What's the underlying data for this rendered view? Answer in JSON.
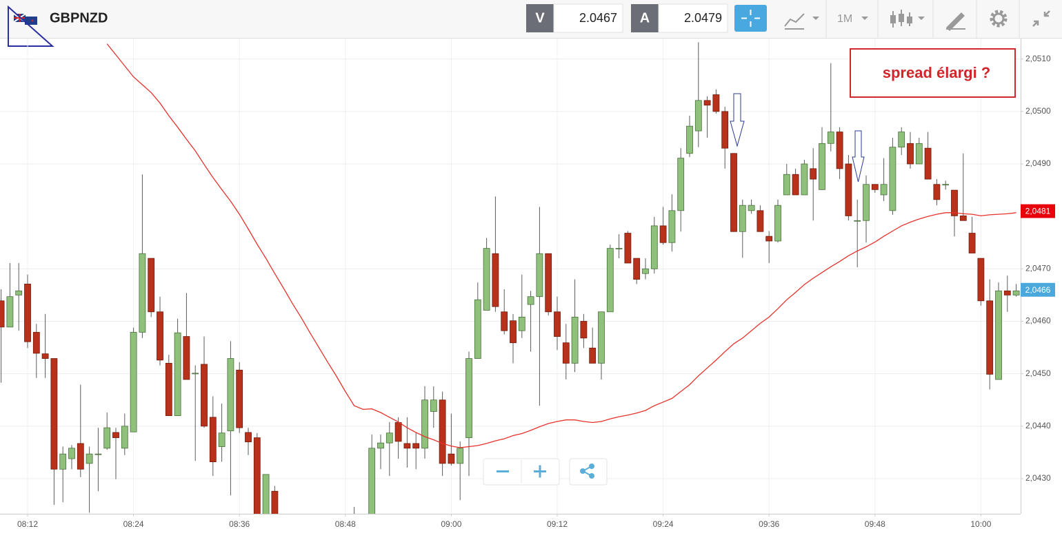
{
  "header": {
    "symbol": "GBPNZD",
    "bid_label": "V",
    "bid": "2.0467",
    "ask_label": "A",
    "ask": "2.0479",
    "timeframe": "1M"
  },
  "chart_data": {
    "type": "candlestick",
    "annotation": "spread élargi ?",
    "categories": [
      null,
      null,
      null,
      "08:12",
      null,
      null,
      null,
      null,
      null,
      null,
      null,
      null,
      null,
      null,
      null,
      "08:24",
      null,
      null,
      null,
      null,
      null,
      null,
      null,
      null,
      null,
      null,
      null,
      "08:36",
      null,
      null,
      null,
      null,
      null,
      null,
      null,
      null,
      null,
      null,
      null,
      "08:48",
      null,
      null,
      null,
      null,
      null,
      null,
      null,
      null,
      null,
      null,
      null,
      "09:00",
      null,
      null,
      null,
      null,
      null,
      null,
      null,
      null,
      null,
      null,
      null,
      "09:12",
      null,
      null,
      null,
      null,
      null,
      null,
      null,
      null,
      null,
      null,
      null,
      "09:24",
      null,
      null,
      null,
      null,
      null,
      null,
      null,
      null,
      null,
      null,
      null,
      "09:36",
      null,
      null,
      null,
      null,
      null,
      null,
      null,
      null,
      null,
      null,
      null,
      "09:48",
      null,
      null,
      null,
      null,
      null,
      null,
      null,
      null,
      null,
      null,
      null,
      "10:00",
      null,
      null,
      null,
      null
    ],
    "open": [
      2.04639,
      2.04589,
      2.0465,
      2.04671,
      2.04579,
      2.04538,
      2.04529,
      2.04318,
      2.04338,
      2.04367,
      2.04329,
      2.04347,
      2.04358,
      2.04388,
      2.04358,
      2.04389,
      2.04579,
      2.0472,
      2.04618,
      2.0452,
      2.0442,
      2.04571,
      2.04501,
      2.04518,
      2.04417,
      2.04361,
      2.04391,
      2.04507,
      2.04388,
      2.04378,
      2.04215,
      2.04276,
      null,
      null,
      null,
      null,
      null,
      null,
      null,
      null,
      2.042,
      null,
      2.04225,
      2.04358,
      2.04368,
      2.04407,
      2.04367,
      2.04367,
      2.04358,
      2.04428,
      2.0445,
      2.04347,
      2.04329,
      2.04378,
      2.04529,
      2.04621,
      2.04729,
      2.04618,
      2.04601,
      2.04582,
      2.04632,
      2.04647,
      2.04729,
      2.04618,
      2.04559,
      2.0452,
      2.046,
      2.04549,
      2.0452,
      2.04618,
      2.04739,
      2.04768,
      2.0472,
      2.04691,
      2.047,
      2.04782,
      2.0475,
      2.04811,
      2.0492,
      2.04963,
      2.05021,
      2.05032,
      2.05,
      2.0492,
      2.04771,
      2.04811,
      2.04811,
      2.04762,
      2.04753,
      2.04841,
      2.0488,
      2.04841,
      2.04891,
      2.04851,
      2.04939,
      2.04961,
      2.049,
      2.04792,
      2.04792,
      2.04861,
      2.04841,
      2.04811,
      2.04932,
      2.04939,
      2.049,
      2.0493,
      2.04861,
      2.04861,
      2.0485,
      2.04801,
      2.04768,
      2.0472,
      2.04639,
      2.04489,
      2.04658,
      2.0465
    ],
    "high": [
      2.04661,
      2.04711,
      2.04711,
      2.04689,
      2.04595,
      2.04614,
      2.04529,
      2.04361,
      2.04364,
      2.04479,
      2.04361,
      2.04397,
      2.04426,
      2.04397,
      2.04424,
      2.04588,
      2.0488,
      2.0472,
      2.04647,
      2.04536,
      2.04605,
      2.04654,
      2.04516,
      2.04571,
      2.04457,
      2.04443,
      2.04562,
      2.04522,
      2.04397,
      2.04387,
      2.04308,
      2.04286,
      null,
      null,
      null,
      null,
      null,
      null,
      null,
      null,
      2.04246,
      null,
      2.04384,
      2.04384,
      2.04408,
      2.04417,
      2.04417,
      2.04387,
      2.04476,
      2.04476,
      2.04466,
      2.04424,
      2.04371,
      2.04542,
      2.04674,
      2.04759,
      2.04838,
      2.04661,
      2.04614,
      2.04689,
      2.04658,
      2.04818,
      2.04729,
      2.04647,
      2.04595,
      2.0468,
      2.04614,
      2.04588,
      2.04618,
      2.04746,
      2.04766,
      2.04772,
      2.0472,
      2.0472,
      2.04799,
      2.04818,
      2.04842,
      2.0493,
      2.04992,
      2.05132,
      2.05029,
      2.05042,
      2.05009,
      2.0492,
      2.04832,
      2.04832,
      2.04821,
      2.04772,
      2.04832,
      2.049,
      2.04891,
      2.04908,
      2.0493,
      2.0497,
      2.05092,
      2.0497,
      2.04917,
      2.04832,
      2.04878,
      2.04861,
      2.04911,
      2.0495,
      2.0497,
      2.04961,
      2.0495,
      2.04961,
      2.04871,
      2.04868,
      2.0485,
      2.0492,
      2.04799,
      2.0472,
      2.0468,
      2.04674,
      2.04687,
      2.04671
    ],
    "low": [
      2.04483,
      2.04589,
      2.04582,
      2.04549,
      2.04492,
      2.04492,
      2.0425,
      2.04255,
      2.04318,
      2.04303,
      2.04235,
      2.04276,
      2.04355,
      2.04299,
      2.04345,
      2.04389,
      2.04568,
      2.04608,
      2.04516,
      2.0442,
      2.0442,
      2.04489,
      2.04334,
      2.04397,
      2.04305,
      2.04332,
      2.04268,
      2.04387,
      2.04345,
      2.0421,
      2.04205,
      2.04215,
      null,
      null,
      null,
      null,
      null,
      null,
      null,
      null,
      2.0419,
      null,
      2.04215,
      2.04318,
      2.04305,
      2.04338,
      2.04321,
      2.04318,
      2.04338,
      2.04397,
      2.04305,
      2.04325,
      2.04259,
      2.04305,
      2.04529,
      2.04621,
      2.04618,
      2.04575,
      2.0452,
      2.04568,
      2.04542,
      2.04439,
      2.04611,
      2.04545,
      2.04489,
      2.04503,
      2.04549,
      2.0452,
      2.04489,
      2.04618,
      2.0472,
      2.04711,
      2.04671,
      2.0468,
      2.04691,
      2.04746,
      2.04733,
      2.04771,
      2.04913,
      2.04932,
      2.0495,
      2.04996,
      2.04891,
      2.04771,
      2.04721,
      2.04805,
      2.04771,
      2.04711,
      2.0475,
      2.04841,
      2.04841,
      2.04841,
      2.04792,
      2.04851,
      2.04924,
      2.04871,
      2.04792,
      2.04703,
      2.0475,
      2.04845,
      2.04829,
      2.04803,
      2.04917,
      2.04891,
      2.049,
      2.04871,
      2.04821,
      2.04851,
      2.04762,
      2.04792,
      2.0473,
      2.0463,
      2.0447,
      2.04489,
      2.04618,
      2.04647
    ],
    "close": [
      2.04589,
      2.04647,
      2.04658,
      2.04561,
      2.04539,
      2.04529,
      2.04318,
      2.04347,
      2.04358,
      2.04318,
      2.04347,
      2.04347,
      2.04397,
      2.04378,
      2.044,
      2.04579,
      2.04729,
      2.04618,
      2.04526,
      2.0442,
      2.04578,
      2.04489,
      2.04501,
      2.044,
      2.04332,
      2.04387,
      2.04529,
      2.04397,
      2.0437,
      2.0422,
      2.04308,
      2.04225,
      null,
      null,
      null,
      null,
      null,
      null,
      null,
      null,
      2.04215,
      null,
      2.04358,
      2.04368,
      2.04387,
      2.04371,
      2.04358,
      2.04358,
      2.0445,
      2.0445,
      2.04329,
      2.04329,
      2.04358,
      2.04529,
      2.04641,
      2.04739,
      2.04628,
      2.04582,
      2.04559,
      2.04608,
      2.04647,
      2.04729,
      2.04618,
      2.04571,
      2.0452,
      2.04608,
      2.04568,
      2.0452,
      2.04618,
      2.04739,
      2.04739,
      2.04711,
      2.0468,
      2.047,
      2.04782,
      2.0475,
      2.04811,
      2.04911,
      2.04972,
      2.05021,
      2.05012,
      2.05,
      2.0493,
      2.04771,
      2.04821,
      2.04821,
      2.04771,
      2.04753,
      2.04821,
      2.0488,
      2.04841,
      2.049,
      2.04871,
      2.04939,
      2.04961,
      2.04891,
      2.04801,
      2.04792,
      2.04861,
      2.04851,
      2.04861,
      2.04932,
      2.04961,
      2.049,
      2.04939,
      2.04871,
      2.04832,
      2.04861,
      2.04801,
      2.04792,
      2.0473,
      2.04639,
      2.04499,
      2.04658,
      2.0465,
      2.04658
    ],
    "up_color": "#8fc17d",
    "down_color": "#b8321b",
    "ma": {
      "color": "#e8312a",
      "values": [
        null,
        null,
        null,
        null,
        null,
        null,
        null,
        null,
        null,
        null,
        null,
        null,
        2.05129,
        2.05108,
        2.05087,
        2.05066,
        2.05051,
        2.05036,
        2.05016,
        2.04992,
        2.0497,
        2.04947,
        2.04925,
        2.04899,
        2.04874,
        2.04851,
        2.04829,
        2.04804,
        2.04776,
        2.04747,
        2.0472,
        2.04691,
        2.04663,
        2.04634,
        2.04607,
        2.04578,
        2.0455,
        2.04522,
        2.04495,
        2.04466,
        2.04439,
        2.04432,
        2.04433,
        2.04426,
        2.04417,
        2.04408,
        2.04397,
        2.04388,
        2.0438,
        2.04374,
        2.04367,
        2.04362,
        2.04359,
        2.04361,
        2.04363,
        2.04367,
        2.04372,
        2.04376,
        2.04382,
        2.04386,
        2.04392,
        2.04399,
        2.04405,
        2.04409,
        2.04412,
        2.04412,
        2.04409,
        2.04407,
        2.04409,
        2.04414,
        2.04418,
        2.04421,
        2.04425,
        2.0443,
        2.04439,
        2.04446,
        2.04453,
        2.04466,
        2.04479,
        2.04496,
        2.04511,
        2.04526,
        2.04542,
        2.04557,
        2.04568,
        2.04582,
        2.04596,
        2.04608,
        2.04624,
        2.04641,
        2.04655,
        2.0467,
        2.04682,
        2.04693,
        2.04704,
        2.04714,
        2.04725,
        2.04734,
        2.04742,
        2.04751,
        2.04762,
        2.04772,
        2.04782,
        2.04789,
        2.04795,
        2.048,
        2.04804,
        2.04807,
        2.04807,
        2.04805,
        2.04804,
        2.04801,
        2.04803,
        2.04804,
        2.04805,
        2.04807
      ]
    },
    "ylim": [
      2.04233,
      2.05139
    ],
    "yticks": [
      {
        "value": 2.043,
        "label": "2,0430"
      },
      {
        "value": 2.044,
        "label": "2,0440"
      },
      {
        "value": 2.045,
        "label": "2,0450"
      },
      {
        "value": 2.046,
        "label": "2,0460"
      },
      {
        "value": 2.047,
        "label": "2,0470"
      },
      {
        "value": 2.049,
        "label": "2,0490"
      },
      {
        "value": 2.05,
        "label": "2,0500"
      },
      {
        "value": 2.051,
        "label": "2,0510"
      }
    ],
    "grid": true,
    "price_tags": [
      {
        "value": 2.0481,
        "label": "2,0481",
        "color": "#e8000b"
      },
      {
        "value": 2.0466,
        "label": "2,0466",
        "color": "#4aa8dc"
      }
    ]
  }
}
